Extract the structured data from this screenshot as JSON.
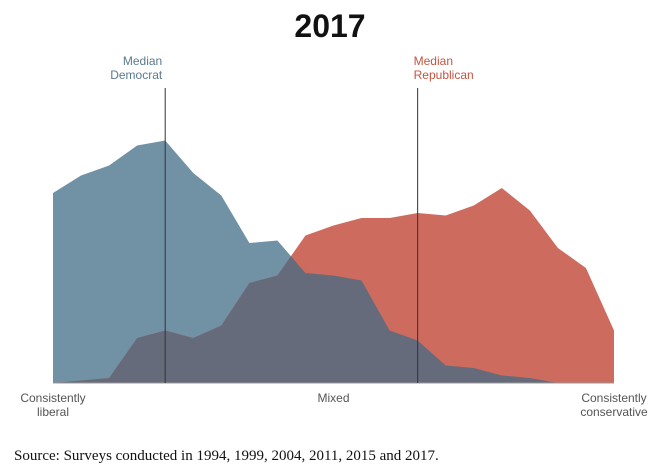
{
  "chart_data": {
    "type": "area",
    "title": "2017",
    "categories": [
      "Consistently\nliberal",
      null,
      null,
      null,
      null,
      null,
      null,
      null,
      null,
      null,
      "Mixed",
      null,
      null,
      null,
      null,
      null,
      null,
      null,
      null,
      null,
      "Consistently\nconservative"
    ],
    "series": [
      {
        "name": "Democrat",
        "color": "#7191a4",
        "values": [
          76,
          83,
          87,
          95,
          97,
          84,
          75,
          56,
          57,
          44,
          43,
          41,
          21,
          17,
          7,
          6,
          3,
          2,
          0,
          0,
          0
        ]
      },
      {
        "name": "Republican",
        "color": "#cd6b5e",
        "values": [
          0,
          1,
          2,
          18,
          21,
          18,
          23,
          40,
          43,
          59,
          63,
          66,
          66,
          68,
          67,
          71,
          78,
          69,
          54,
          46,
          21
        ]
      }
    ],
    "overlap_color": "#666b7b",
    "ylim": [
      0,
      100
    ],
    "annotations": [
      {
        "text": "Median\nDemocrat",
        "x": 4,
        "color": "#5a7a90"
      },
      {
        "text": "Median\nRepublican",
        "x": 13,
        "color": "#c4553f"
      }
    ],
    "source": "Source: Surveys conducted in 1994, 1999, 2004, 2011, 2015 and 2017."
  }
}
